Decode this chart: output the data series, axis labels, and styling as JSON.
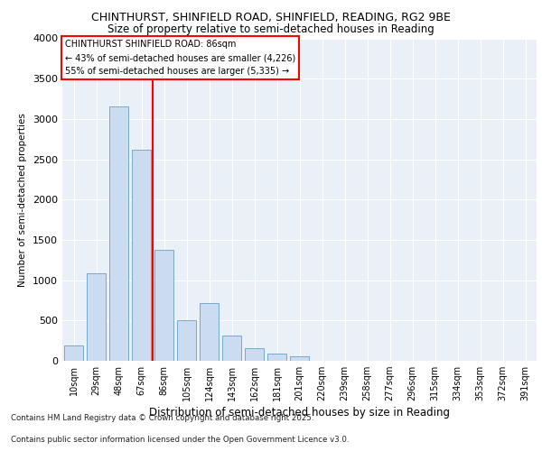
{
  "title_line1": "CHINTHURST, SHINFIELD ROAD, SHINFIELD, READING, RG2 9BE",
  "title_line2": "Size of property relative to semi-detached houses in Reading",
  "xlabel": "Distribution of semi-detached houses by size in Reading",
  "ylabel": "Number of semi-detached properties",
  "categories": [
    "10sqm",
    "29sqm",
    "48sqm",
    "67sqm",
    "86sqm",
    "105sqm",
    "124sqm",
    "143sqm",
    "162sqm",
    "181sqm",
    "201sqm",
    "220sqm",
    "239sqm",
    "258sqm",
    "277sqm",
    "296sqm",
    "315sqm",
    "334sqm",
    "353sqm",
    "372sqm",
    "391sqm"
  ],
  "values": [
    190,
    1080,
    3150,
    2620,
    1380,
    500,
    720,
    310,
    160,
    95,
    60,
    0,
    0,
    0,
    0,
    0,
    0,
    0,
    0,
    0,
    0
  ],
  "bar_color": "#ccdcf0",
  "bar_edge_color": "#6a9fc8",
  "red_line_x": 3.5,
  "annotation_title": "CHINTHURST SHINFIELD ROAD: 86sqm",
  "annotation_line2": "← 43% of semi-detached houses are smaller (4,226)",
  "annotation_line3": "55% of semi-detached houses are larger (5,335) →",
  "ylim": [
    0,
    4000
  ],
  "yticks": [
    0,
    500,
    1000,
    1500,
    2000,
    2500,
    3000,
    3500,
    4000
  ],
  "footer_line1": "Contains HM Land Registry data © Crown copyright and database right 2025.",
  "footer_line2": "Contains public sector information licensed under the Open Government Licence v3.0.",
  "bg_color": "#eaf0f8",
  "grid_color": "#ffffff"
}
